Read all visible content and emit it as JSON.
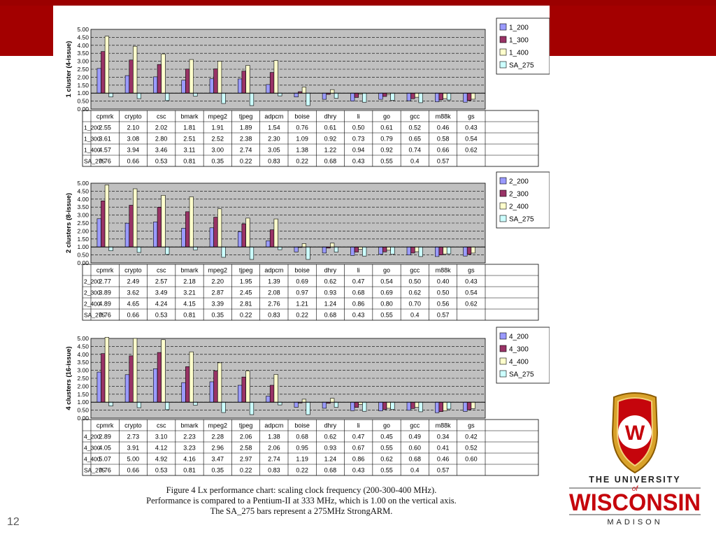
{
  "slide": {
    "number": "12"
  },
  "colors": {
    "s200": "#9a9aff",
    "s300": "#993366",
    "s400": "#ffffcc",
    "sa275": "#ccffff",
    "plot_bg": "#c0c0c0",
    "brand_red": "#a30000"
  },
  "caption": {
    "line1": "Figure 4 Lx performance chart: scaling clock frequency (200-300-400 MHz).",
    "line2": "Performance is compared to a Pentium-II at 333 MHz, which is 1.00 on the vertical axis.",
    "line3": "The SA_275 bars represent a 275MHz StrongARM."
  },
  "logo": {
    "line1": "THE UNIVERSITY",
    "of": "of",
    "line2": "WISCONSIN",
    "line3": "MADISON",
    "crest_letter": "W"
  },
  "chart_data": [
    {
      "type": "bar",
      "ylabel": "1 cluster (4-issue)",
      "ylim": [
        0,
        5
      ],
      "yticks": [
        "0.00",
        "0.50",
        "1.00",
        "1.50",
        "2.00",
        "2.50",
        "3.00",
        "3.50",
        "4.00",
        "4.50",
        "5.00"
      ],
      "baseline": 1.0,
      "grid": true,
      "legend": "right",
      "categories": [
        "cpmrk",
        "crypto",
        "csc",
        "bmark",
        "mpeg2",
        "tjpeg",
        "adpcm",
        "boise",
        "dhry",
        "li",
        "go",
        "gcc",
        "m88k",
        "gs"
      ],
      "series": [
        {
          "name": "1_200",
          "values": [
            2.55,
            2.1,
            2.02,
            1.81,
            1.91,
            1.89,
            1.54,
            0.76,
            0.61,
            0.5,
            0.61,
            0.52,
            0.46,
            0.43
          ],
          "labels": [
            "2.55",
            "2.10",
            "2.02",
            "1.81",
            "1.91",
            "1.89",
            "1.54",
            "0.76",
            "0.61",
            "0.50",
            "0.61",
            "0.52",
            "0.46",
            "0.43"
          ]
        },
        {
          "name": "1_300",
          "values": [
            3.61,
            3.08,
            2.8,
            2.51,
            2.52,
            2.38,
            2.3,
            1.09,
            0.92,
            0.73,
            0.79,
            0.65,
            0.58,
            0.54
          ],
          "labels": [
            "3.61",
            "3.08",
            "2.80",
            "2.51",
            "2.52",
            "2.38",
            "2.30",
            "1.09",
            "0.92",
            "0.73",
            "0.79",
            "0.65",
            "0.58",
            "0.54"
          ]
        },
        {
          "name": "1_400",
          "values": [
            4.57,
            3.94,
            3.46,
            3.11,
            3.0,
            2.74,
            3.05,
            1.38,
            1.22,
            0.94,
            0.92,
            0.74,
            0.66,
            0.62
          ],
          "labels": [
            "4.57",
            "3.94",
            "3.46",
            "3.11",
            "3.00",
            "2.74",
            "3.05",
            "1.38",
            "1.22",
            "0.94",
            "0.92",
            "0.74",
            "0.66",
            "0.62"
          ]
        },
        {
          "name": "SA_275",
          "values": [
            0.76,
            0.66,
            0.53,
            0.81,
            0.35,
            0.22,
            0.83,
            0.22,
            0.68,
            0.43,
            0.55,
            0.4,
            0.57,
            null
          ],
          "labels": [
            "0.76",
            "0.66",
            "0.53",
            "0.81",
            "0.35",
            "0.22",
            "0.83",
            "0.22",
            "0.68",
            "0.43",
            "0.55",
            "0.4",
            "0.57",
            ""
          ]
        }
      ]
    },
    {
      "type": "bar",
      "ylabel": "2 clusters (8-issue)",
      "ylim": [
        0,
        5
      ],
      "yticks": [
        "0.00",
        "0.50",
        "1.00",
        "1.50",
        "2.00",
        "2.50",
        "3.00",
        "3.50",
        "4.00",
        "4.50",
        "5.00"
      ],
      "baseline": 1.0,
      "grid": true,
      "legend": "right",
      "categories": [
        "cpmrk",
        "crypto",
        "csc",
        "bmark",
        "mpeg2",
        "tjpeg",
        "adpcm",
        "boise",
        "dhry",
        "li",
        "go",
        "gcc",
        "m88k",
        "gs"
      ],
      "series": [
        {
          "name": "2_200",
          "values": [
            2.77,
            2.49,
            2.57,
            2.18,
            2.2,
            1.95,
            1.39,
            0.69,
            0.62,
            0.47,
            0.54,
            0.5,
            0.4,
            0.43
          ],
          "labels": [
            "2.77",
            "2.49",
            "2.57",
            "2.18",
            "2.20",
            "1.95",
            "1.39",
            "0.69",
            "0.62",
            "0.47",
            "0.54",
            "0.50",
            "0.40",
            "0.43"
          ]
        },
        {
          "name": "2_300",
          "values": [
            3.89,
            3.62,
            3.49,
            3.21,
            2.87,
            2.45,
            2.08,
            0.97,
            0.93,
            0.68,
            0.69,
            0.62,
            0.5,
            0.54
          ],
          "labels": [
            "3.89",
            "3.62",
            "3.49",
            "3.21",
            "2.87",
            "2.45",
            "2.08",
            "0.97",
            "0.93",
            "0.68",
            "0.69",
            "0.62",
            "0.50",
            "0.54"
          ]
        },
        {
          "name": "2_400",
          "values": [
            4.89,
            4.65,
            4.24,
            4.15,
            3.39,
            2.81,
            2.76,
            1.21,
            1.24,
            0.86,
            0.8,
            0.7,
            0.56,
            0.62
          ],
          "labels": [
            "4.89",
            "4.65",
            "4.24",
            "4.15",
            "3.39",
            "2.81",
            "2.76",
            "1.21",
            "1.24",
            "0.86",
            "0.80",
            "0.70",
            "0.56",
            "0.62"
          ]
        },
        {
          "name": "SA_275",
          "values": [
            0.76,
            0.66,
            0.53,
            0.81,
            0.35,
            0.22,
            0.83,
            0.22,
            0.68,
            0.43,
            0.55,
            0.4,
            0.57,
            null
          ],
          "labels": [
            "0.76",
            "0.66",
            "0.53",
            "0.81",
            "0.35",
            "0.22",
            "0.83",
            "0.22",
            "0.68",
            "0.43",
            "0.55",
            "0.4",
            "0.57",
            ""
          ]
        }
      ]
    },
    {
      "type": "bar",
      "ylabel": "4 clusters (16-issue)",
      "ylim": [
        0,
        5
      ],
      "yticks": [
        "0.00",
        "0.50",
        "1.00",
        "1.50",
        "2.00",
        "2.50",
        "3.00",
        "3.50",
        "4.00",
        "4.50",
        "5.00"
      ],
      "baseline": 1.0,
      "grid": true,
      "legend": "right",
      "categories": [
        "cpmrk",
        "crypto",
        "csc",
        "bmark",
        "mpeg2",
        "tjpeg",
        "adpcm",
        "boise",
        "dhry",
        "li",
        "go",
        "gcc",
        "m88k",
        "gs"
      ],
      "series": [
        {
          "name": "4_200",
          "values": [
            2.89,
            2.73,
            3.1,
            2.23,
            2.28,
            2.06,
            1.38,
            0.68,
            0.62,
            0.47,
            0.45,
            0.49,
            0.34,
            0.42
          ],
          "labels": [
            "2.89",
            "2.73",
            "3.10",
            "2.23",
            "2.28",
            "2.06",
            "1.38",
            "0.68",
            "0.62",
            "0.47",
            "0.45",
            "0.49",
            "0.34",
            "0.42"
          ]
        },
        {
          "name": "4_300",
          "values": [
            4.05,
            3.91,
            4.12,
            3.23,
            2.96,
            2.58,
            2.06,
            0.95,
            0.93,
            0.67,
            0.55,
            0.6,
            0.41,
            0.52
          ],
          "labels": [
            "4.05",
            "3.91",
            "4.12",
            "3.23",
            "2.96",
            "2.58",
            "2.06",
            "0.95",
            "0.93",
            "0.67",
            "0.55",
            "0.60",
            "0.41",
            "0.52"
          ]
        },
        {
          "name": "4_400",
          "values": [
            5.07,
            5.0,
            4.92,
            4.16,
            3.47,
            2.97,
            2.74,
            1.19,
            1.24,
            0.86,
            0.62,
            0.68,
            0.46,
            0.6
          ],
          "labels": [
            "5.07",
            "5.00",
            "4.92",
            "4.16",
            "3.47",
            "2.97",
            "2.74",
            "1.19",
            "1.24",
            "0.86",
            "0.62",
            "0.68",
            "0.46",
            "0.60"
          ]
        },
        {
          "name": "SA_275",
          "values": [
            0.76,
            0.66,
            0.53,
            0.81,
            0.35,
            0.22,
            0.83,
            0.22,
            0.68,
            0.43,
            0.55,
            0.4,
            0.57,
            null
          ],
          "labels": [
            "0.76",
            "0.66",
            "0.53",
            "0.81",
            "0.35",
            "0.22",
            "0.83",
            "0.22",
            "0.68",
            "0.43",
            "0.55",
            "0.4",
            "0.57",
            ""
          ]
        }
      ]
    }
  ]
}
